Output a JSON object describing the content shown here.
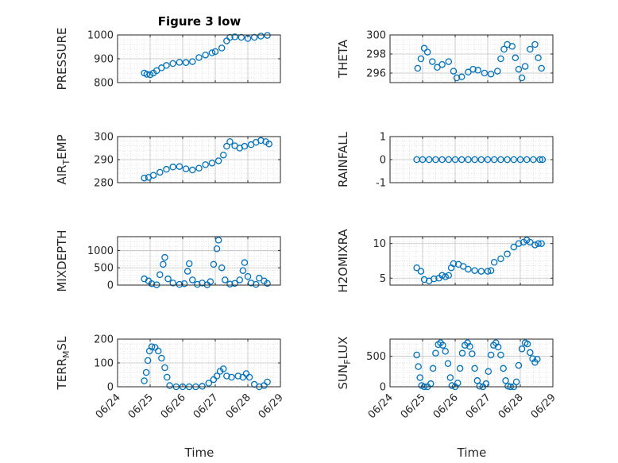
{
  "figure": {
    "title": "Figure 3 low",
    "xlabel": "Time"
  },
  "chart_data": [
    {
      "type": "scatter",
      "ylabel": "PRESSURE",
      "xlim": [
        0,
        5
      ],
      "ylim": [
        800,
        1000
      ],
      "yticks": [
        800,
        900,
        1000
      ],
      "xticklabels": [
        "06/24",
        "06/25",
        "06/26",
        "06/27",
        "06/28",
        "06/29"
      ],
      "show_xticklabels": false,
      "grid": true,
      "marker": "open-circle",
      "color": "#0072BD",
      "points": [
        [
          0.82,
          840
        ],
        [
          0.9,
          835
        ],
        [
          1.0,
          833
        ],
        [
          1.1,
          840
        ],
        [
          1.2,
          850
        ],
        [
          1.35,
          862
        ],
        [
          1.5,
          872
        ],
        [
          1.7,
          880
        ],
        [
          1.9,
          885
        ],
        [
          2.1,
          884
        ],
        [
          2.3,
          888
        ],
        [
          2.5,
          905
        ],
        [
          2.7,
          916
        ],
        [
          2.9,
          925
        ],
        [
          3.0,
          930
        ],
        [
          3.2,
          945
        ],
        [
          3.35,
          975
        ],
        [
          3.45,
          990
        ],
        [
          3.6,
          992
        ],
        [
          3.8,
          990
        ],
        [
          4.0,
          985
        ],
        [
          4.2,
          990
        ],
        [
          4.4,
          995
        ],
        [
          4.6,
          998
        ]
      ]
    },
    {
      "type": "scatter",
      "ylabel": "THETA",
      "xlim": [
        0,
        5
      ],
      "ylim": [
        295,
        300
      ],
      "yticks": [
        296,
        298,
        300
      ],
      "show_xticklabels": false,
      "grid": true,
      "marker": "open-circle",
      "color": "#0072BD",
      "points": [
        [
          0.85,
          296.5
        ],
        [
          0.95,
          297.5
        ],
        [
          1.05,
          298.6
        ],
        [
          1.15,
          298.2
        ],
        [
          1.3,
          297.2
        ],
        [
          1.45,
          296.6
        ],
        [
          1.6,
          296.9
        ],
        [
          1.8,
          297.2
        ],
        [
          1.95,
          296.2
        ],
        [
          2.05,
          295.5
        ],
        [
          2.2,
          295.6
        ],
        [
          2.4,
          296.1
        ],
        [
          2.55,
          296.4
        ],
        [
          2.7,
          296.3
        ],
        [
          2.9,
          296.0
        ],
        [
          3.1,
          295.9
        ],
        [
          3.3,
          296.2
        ],
        [
          3.4,
          297.5
        ],
        [
          3.5,
          298.5
        ],
        [
          3.6,
          299.0
        ],
        [
          3.75,
          298.8
        ],
        [
          3.85,
          297.6
        ],
        [
          3.95,
          296.4
        ],
        [
          4.05,
          295.5
        ],
        [
          4.15,
          296.7
        ],
        [
          4.3,
          298.5
        ],
        [
          4.45,
          299.0
        ],
        [
          4.55,
          297.6
        ],
        [
          4.65,
          296.5
        ]
      ]
    },
    {
      "type": "scatter",
      "ylabel": "AIR_TEMP",
      "xlim": [
        0,
        5
      ],
      "ylim": [
        280,
        300
      ],
      "yticks": [
        280,
        290,
        300
      ],
      "show_xticklabels": false,
      "grid": true,
      "marker": "open-circle",
      "color": "#0072BD",
      "points": [
        [
          0.82,
          282
        ],
        [
          0.95,
          282.3
        ],
        [
          1.1,
          283.2
        ],
        [
          1.3,
          284.5
        ],
        [
          1.5,
          285.8
        ],
        [
          1.7,
          286.8
        ],
        [
          1.9,
          287.0
        ],
        [
          2.1,
          286.0
        ],
        [
          2.3,
          285.5
        ],
        [
          2.5,
          286.3
        ],
        [
          2.7,
          287.8
        ],
        [
          2.9,
          288.5
        ],
        [
          3.1,
          289.5
        ],
        [
          3.25,
          292.0
        ],
        [
          3.35,
          295.8
        ],
        [
          3.45,
          297.8
        ],
        [
          3.6,
          296.0
        ],
        [
          3.75,
          295.0
        ],
        [
          3.9,
          295.8
        ],
        [
          4.1,
          296.5
        ],
        [
          4.25,
          297.5
        ],
        [
          4.4,
          298.3
        ],
        [
          4.55,
          297.8
        ],
        [
          4.65,
          296.8
        ]
      ]
    },
    {
      "type": "scatter",
      "ylabel": "RAINFALL",
      "xlim": [
        0,
        5
      ],
      "ylim": [
        -1,
        1
      ],
      "yticks": [
        -1,
        0,
        1
      ],
      "show_xticklabels": false,
      "grid": true,
      "marker": "open-circle",
      "color": "#0072BD",
      "points": [
        [
          0.82,
          0
        ],
        [
          1.0,
          0
        ],
        [
          1.2,
          0
        ],
        [
          1.4,
          0
        ],
        [
          1.6,
          0
        ],
        [
          1.8,
          0
        ],
        [
          2.0,
          0
        ],
        [
          2.2,
          0
        ],
        [
          2.4,
          0
        ],
        [
          2.6,
          0
        ],
        [
          2.8,
          0
        ],
        [
          3.0,
          0
        ],
        [
          3.2,
          0
        ],
        [
          3.4,
          0
        ],
        [
          3.6,
          0
        ],
        [
          3.8,
          0
        ],
        [
          4.0,
          0
        ],
        [
          4.2,
          0
        ],
        [
          4.4,
          0
        ],
        [
          4.6,
          0
        ],
        [
          4.68,
          0
        ]
      ]
    },
    {
      "type": "scatter",
      "ylabel": "MIXDEPTH",
      "xlim": [
        0,
        5
      ],
      "ylim": [
        0,
        1400
      ],
      "yticks": [
        0,
        500,
        1000
      ],
      "show_xticklabels": false,
      "grid": true,
      "marker": "open-circle",
      "color": "#0072BD",
      "points": [
        [
          0.82,
          180
        ],
        [
          0.95,
          120
        ],
        [
          1.05,
          40
        ],
        [
          1.2,
          10
        ],
        [
          1.3,
          300
        ],
        [
          1.4,
          600
        ],
        [
          1.45,
          800
        ],
        [
          1.55,
          180
        ],
        [
          1.7,
          60
        ],
        [
          1.9,
          20
        ],
        [
          2.05,
          40
        ],
        [
          2.15,
          400
        ],
        [
          2.2,
          620
        ],
        [
          2.3,
          150
        ],
        [
          2.45,
          20
        ],
        [
          2.6,
          60
        ],
        [
          2.75,
          10
        ],
        [
          2.85,
          100
        ],
        [
          2.95,
          600
        ],
        [
          3.05,
          1050
        ],
        [
          3.1,
          1300
        ],
        [
          3.2,
          500
        ],
        [
          3.3,
          150
        ],
        [
          3.45,
          30
        ],
        [
          3.6,
          50
        ],
        [
          3.75,
          150
        ],
        [
          3.85,
          420
        ],
        [
          3.9,
          650
        ],
        [
          4.0,
          250
        ],
        [
          4.1,
          60
        ],
        [
          4.25,
          20
        ],
        [
          4.35,
          200
        ],
        [
          4.5,
          120
        ],
        [
          4.6,
          50
        ]
      ]
    },
    {
      "type": "scatter",
      "ylabel": "H2OMIXRA",
      "xlim": [
        0,
        5
      ],
      "ylim": [
        4,
        11
      ],
      "yticks": [
        5,
        10
      ],
      "show_xticklabels": false,
      "grid": true,
      "marker": "open-circle",
      "color": "#0072BD",
      "points": [
        [
          0.82,
          6.5
        ],
        [
          0.95,
          6.0
        ],
        [
          1.05,
          4.8
        ],
        [
          1.2,
          4.6
        ],
        [
          1.35,
          4.9
        ],
        [
          1.5,
          5.0
        ],
        [
          1.6,
          5.4
        ],
        [
          1.7,
          5.2
        ],
        [
          1.8,
          5.4
        ],
        [
          1.88,
          6.5
        ],
        [
          1.95,
          7.1
        ],
        [
          2.1,
          7.0
        ],
        [
          2.25,
          6.7
        ],
        [
          2.4,
          6.3
        ],
        [
          2.6,
          6.1
        ],
        [
          2.8,
          6.0
        ],
        [
          3.0,
          6.0
        ],
        [
          3.1,
          6.1
        ],
        [
          3.2,
          7.3
        ],
        [
          3.4,
          7.8
        ],
        [
          3.6,
          8.5
        ],
        [
          3.8,
          9.5
        ],
        [
          3.95,
          10.0
        ],
        [
          4.1,
          10.2
        ],
        [
          4.2,
          10.5
        ],
        [
          4.3,
          10.2
        ],
        [
          4.45,
          9.8
        ],
        [
          4.55,
          10.0
        ],
        [
          4.65,
          10.0
        ]
      ]
    },
    {
      "type": "scatter",
      "ylabel": "TERR_MSL",
      "xlim": [
        0,
        5
      ],
      "ylim": [
        0,
        200
      ],
      "yticks": [
        0,
        100,
        200
      ],
      "xticklabels": [
        "06/24",
        "06/25",
        "06/26",
        "06/27",
        "06/28",
        "06/29"
      ],
      "show_xticklabels": true,
      "grid": true,
      "marker": "open-circle",
      "color": "#0072BD",
      "points": [
        [
          0.82,
          25
        ],
        [
          0.88,
          60
        ],
        [
          0.93,
          110
        ],
        [
          0.98,
          150
        ],
        [
          1.05,
          168
        ],
        [
          1.15,
          165
        ],
        [
          1.25,
          150
        ],
        [
          1.35,
          120
        ],
        [
          1.45,
          80
        ],
        [
          1.52,
          40
        ],
        [
          1.6,
          5
        ],
        [
          1.8,
          0
        ],
        [
          2.0,
          0
        ],
        [
          2.2,
          0
        ],
        [
          2.4,
          0
        ],
        [
          2.6,
          2
        ],
        [
          2.8,
          15
        ],
        [
          2.95,
          30
        ],
        [
          3.05,
          45
        ],
        [
          3.15,
          65
        ],
        [
          3.25,
          75
        ],
        [
          3.35,
          45
        ],
        [
          3.5,
          40
        ],
        [
          3.7,
          45
        ],
        [
          3.85,
          40
        ],
        [
          3.95,
          55
        ],
        [
          4.05,
          40
        ],
        [
          4.2,
          10
        ],
        [
          4.35,
          0
        ],
        [
          4.5,
          5
        ],
        [
          4.6,
          20
        ]
      ]
    },
    {
      "type": "scatter",
      "ylabel": "SUN_FLUX",
      "xlim": [
        0,
        5
      ],
      "ylim": [
        0,
        780
      ],
      "yticks": [
        0,
        500
      ],
      "xticklabels": [
        "06/24",
        "06/25",
        "06/26",
        "06/27",
        "06/28",
        "06/29"
      ],
      "show_xticklabels": true,
      "grid": true,
      "marker": "open-circle",
      "color": "#0072BD",
      "points": [
        [
          0.82,
          520
        ],
        [
          0.87,
          330
        ],
        [
          0.92,
          150
        ],
        [
          0.97,
          20
        ],
        [
          1.05,
          0
        ],
        [
          1.15,
          0
        ],
        [
          1.25,
          50
        ],
        [
          1.32,
          300
        ],
        [
          1.4,
          550
        ],
        [
          1.48,
          690
        ],
        [
          1.55,
          720
        ],
        [
          1.62,
          680
        ],
        [
          1.7,
          580
        ],
        [
          1.78,
          380
        ],
        [
          1.85,
          150
        ],
        [
          1.9,
          20
        ],
        [
          2.0,
          0
        ],
        [
          2.08,
          60
        ],
        [
          2.15,
          300
        ],
        [
          2.22,
          550
        ],
        [
          2.3,
          680
        ],
        [
          2.38,
          720
        ],
        [
          2.45,
          660
        ],
        [
          2.52,
          540
        ],
        [
          2.6,
          300
        ],
        [
          2.68,
          100
        ],
        [
          2.75,
          10
        ],
        [
          2.85,
          0
        ],
        [
          2.95,
          50
        ],
        [
          3.02,
          250
        ],
        [
          3.1,
          520
        ],
        [
          3.18,
          680
        ],
        [
          3.25,
          720
        ],
        [
          3.32,
          650
        ],
        [
          3.4,
          520
        ],
        [
          3.48,
          300
        ],
        [
          3.55,
          100
        ],
        [
          3.62,
          10
        ],
        [
          3.7,
          0
        ],
        [
          3.8,
          0
        ],
        [
          3.88,
          80
        ],
        [
          3.95,
          350
        ],
        [
          4.05,
          620
        ],
        [
          4.15,
          720
        ],
        [
          4.22,
          700
        ],
        [
          4.3,
          560
        ],
        [
          4.38,
          460
        ],
        [
          4.45,
          400
        ],
        [
          4.52,
          450
        ]
      ]
    }
  ]
}
